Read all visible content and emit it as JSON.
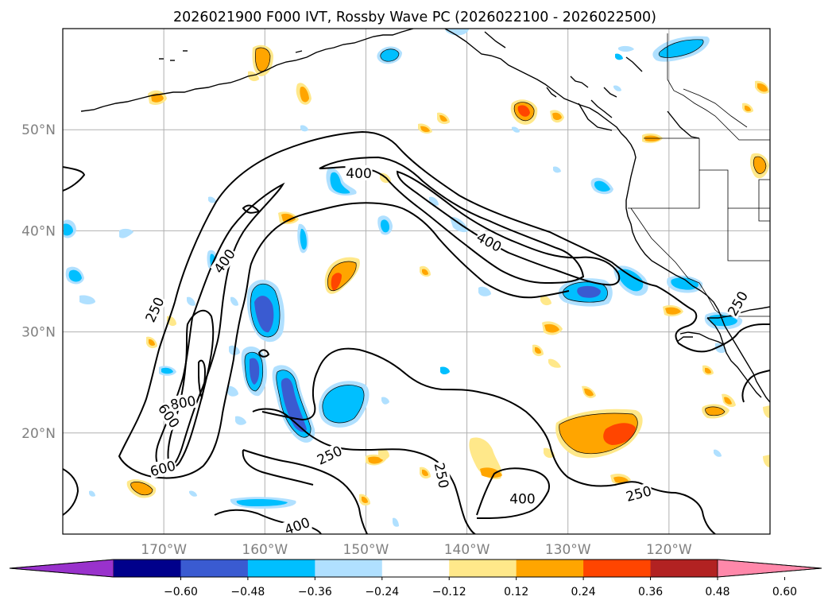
{
  "title": "2026021900 F000 IVT, Rossby Wave PC (2026022100 - 2026022500)",
  "map": {
    "lon_range": [
      -180,
      -110
    ],
    "lat_range": [
      10,
      60
    ],
    "gridlines": true,
    "lat_ticks": [
      {
        "label": "20°N",
        "value": 20
      },
      {
        "label": "30°N",
        "value": 30
      },
      {
        "label": "40°N",
        "value": 40
      },
      {
        "label": "50°N",
        "value": 50
      }
    ],
    "lon_ticks": [
      {
        "label": "170°W",
        "value": -170
      },
      {
        "label": "160°W",
        "value": -160
      },
      {
        "label": "150°W",
        "value": -150
      },
      {
        "label": "140°W",
        "value": -140
      },
      {
        "label": "130°W",
        "value": -130
      },
      {
        "label": "120°W",
        "value": -120
      }
    ],
    "contour_labels": [
      {
        "text": "400",
        "lon": -150.7,
        "lat": 45.7,
        "rot": 0
      },
      {
        "text": "400",
        "lon": -137.8,
        "lat": 38.9,
        "rot": 28
      },
      {
        "text": "400",
        "lon": -164.0,
        "lat": 37.0,
        "rot": -55
      },
      {
        "text": "250",
        "lon": -170.9,
        "lat": 32.2,
        "rot": -65
      },
      {
        "text": "800",
        "lon": -168.1,
        "lat": 23.0,
        "rot": -10
      },
      {
        "text": "600",
        "lon": -169.5,
        "lat": 21.7,
        "rot": 55
      },
      {
        "text": "600",
        "lon": -170.1,
        "lat": 16.5,
        "rot": -15
      },
      {
        "text": "250",
        "lon": -153.6,
        "lat": 17.8,
        "rot": -25
      },
      {
        "text": "250",
        "lon": -142.5,
        "lat": 15.8,
        "rot": 78
      },
      {
        "text": "400",
        "lon": -134.5,
        "lat": 13.5,
        "rot": 0
      },
      {
        "text": "250",
        "lon": -123.0,
        "lat": 14.0,
        "rot": -15
      },
      {
        "text": "400",
        "lon": -156.8,
        "lat": 10.8,
        "rot": -20
      },
      {
        "text": "250",
        "lon": -113.2,
        "lat": 32.8,
        "rot": -60
      }
    ]
  },
  "colorbar": {
    "colors": [
      "#9932cc",
      "#00008b",
      "#3a5bd1",
      "#00bfff",
      "#b0e0ff",
      "#ffffff",
      "#ffe88a",
      "#ffa500",
      "#ff4500",
      "#b22222",
      "#ff88aa"
    ],
    "ticks": [
      "−0.60",
      "−0.48",
      "−0.36",
      "−0.24",
      "−0.12",
      "0.12",
      "0.24",
      "0.36",
      "0.48",
      "0.60"
    ]
  }
}
